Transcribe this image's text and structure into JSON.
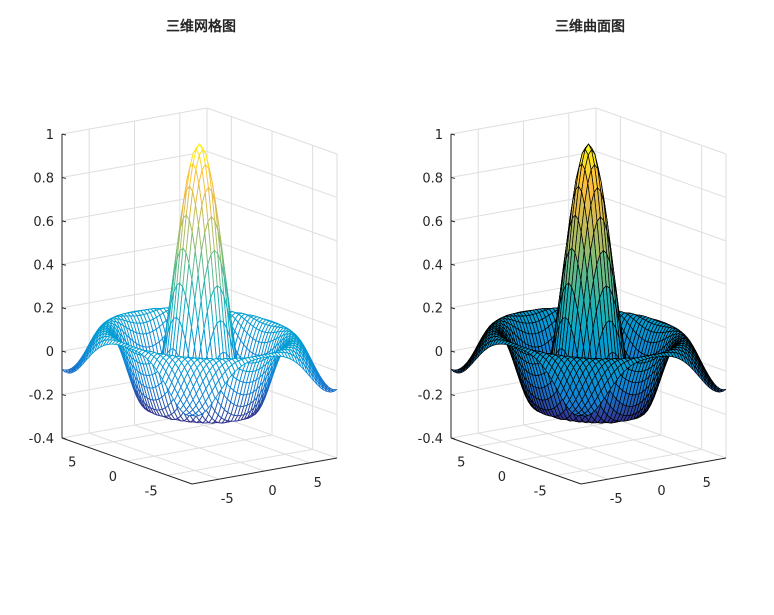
{
  "figure": {
    "background": "#ffffff"
  },
  "chart_data": [
    {
      "type": "surface",
      "style": "mesh",
      "title": "三维网格图",
      "function": "z = sinc(r), r = sqrt(x^2 + y^2)",
      "x_range": [
        -8,
        8
      ],
      "y_range": [
        -8,
        8
      ],
      "z_range": [
        -0.4,
        1
      ],
      "z_ticks": [
        "-0.4",
        "-0.2",
        "0",
        "0.2",
        "0.4",
        "0.6",
        "0.8",
        "1"
      ],
      "x_ticks": [
        "-5",
        "0",
        "5"
      ],
      "y_ticks": [
        "-5",
        "0",
        "5"
      ],
      "colormap": "parula",
      "edge_color": "colormap",
      "face_color": "white",
      "grid": true
    },
    {
      "type": "surface",
      "style": "surf",
      "title": "三维曲面图",
      "function": "z = sinc(r), r = sqrt(x^2 + y^2)",
      "x_range": [
        -8,
        8
      ],
      "y_range": [
        -8,
        8
      ],
      "z_range": [
        -0.4,
        1
      ],
      "z_ticks": [
        "-0.4",
        "-0.2",
        "0",
        "0.2",
        "0.4",
        "0.6",
        "0.8",
        "1"
      ],
      "x_ticks": [
        "-5",
        "0",
        "5"
      ],
      "y_ticks": [
        "-5",
        "0",
        "5"
      ],
      "colormap": "parula",
      "edge_color": "black",
      "face_color": "colormap",
      "grid": true
    }
  ]
}
